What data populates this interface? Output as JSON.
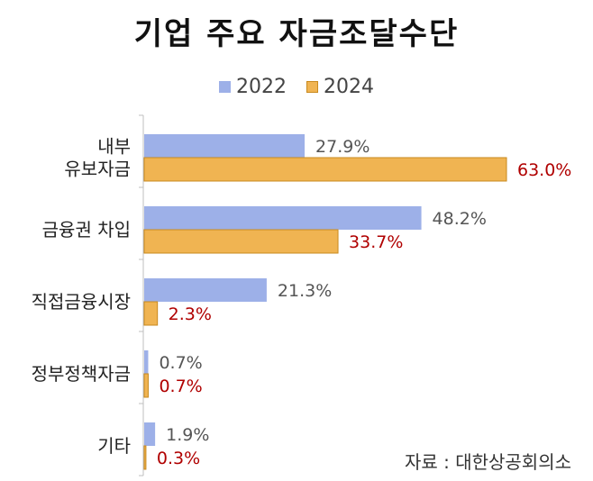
{
  "chart_data": {
    "type": "bar",
    "orientation": "horizontal",
    "title": "기업 주요 자금조달수단",
    "categories": [
      [
        "내부",
        "유보자금"
      ],
      [
        "금융권 차입"
      ],
      [
        "직접금융시장"
      ],
      [
        "정부정책자금"
      ],
      [
        "기타"
      ]
    ],
    "series": [
      {
        "name": "2022",
        "color": "#9DB0E8",
        "label_color": "#555555",
        "values": [
          27.9,
          48.2,
          21.3,
          0.7,
          1.9
        ],
        "labels": [
          "27.9%",
          "48.2%",
          "21.3%",
          "0.7%",
          "1.9%"
        ]
      },
      {
        "name": "2024",
        "color": "#F0B452",
        "label_color": "#B00000",
        "values": [
          63.0,
          33.7,
          2.3,
          0.7,
          0.3
        ],
        "labels": [
          "63.0%",
          "33.7%",
          "2.3%",
          "0.7%",
          "0.3%"
        ]
      }
    ],
    "xlim": [
      0,
      64
    ],
    "legend_position": "top-center",
    "grid": false
  },
  "source_note": "자료 : 대한상공회의소"
}
